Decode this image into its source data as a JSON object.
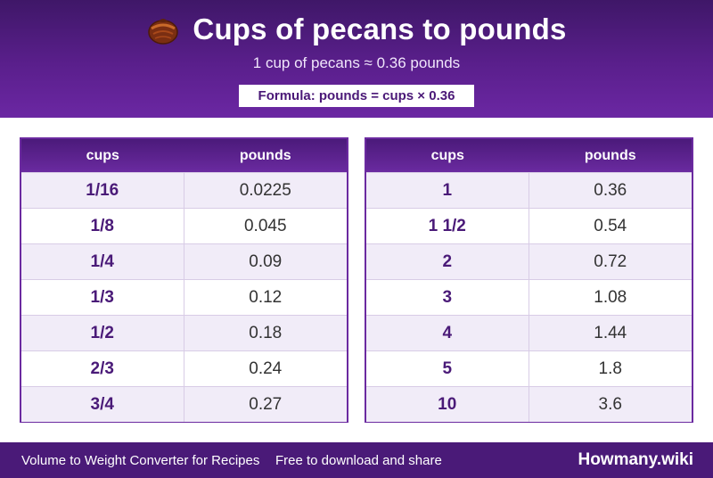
{
  "header": {
    "title": "Cups of pecans to pounds",
    "subtitle": "1 cup of pecans ≈ 0.36 pounds",
    "formula": "Formula: pounds = cups × 0.36",
    "icon": "pecan-icon"
  },
  "tables": [
    {
      "headers": [
        "cups",
        "pounds"
      ],
      "rows": [
        [
          "1/16",
          "0.0225"
        ],
        [
          "1/8",
          "0.045"
        ],
        [
          "1/4",
          "0.09"
        ],
        [
          "1/3",
          "0.12"
        ],
        [
          "1/2",
          "0.18"
        ],
        [
          "2/3",
          "0.24"
        ],
        [
          "3/4",
          "0.27"
        ]
      ]
    },
    {
      "headers": [
        "cups",
        "pounds"
      ],
      "rows": [
        [
          "1",
          "0.36"
        ],
        [
          "1 1/2",
          "0.54"
        ],
        [
          "2",
          "0.72"
        ],
        [
          "3",
          "1.08"
        ],
        [
          "4",
          "1.44"
        ],
        [
          "5",
          "1.8"
        ],
        [
          "10",
          "3.6"
        ]
      ]
    }
  ],
  "footer": {
    "left": "Volume to Weight Converter for Recipes",
    "middle": "Free to download and share",
    "brand": "Howmany.wiki"
  },
  "colors": {
    "header_bg": "#5a1f8c",
    "accent": "#4a1a78",
    "row_alt": "#f1ecf8"
  }
}
